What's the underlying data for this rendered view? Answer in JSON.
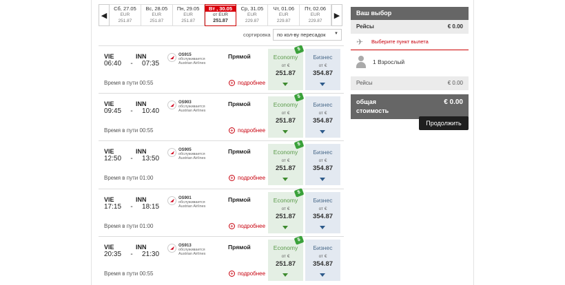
{
  "dates": [
    {
      "name": "Сб, 27.05",
      "currency": "EUR",
      "price": "251.87",
      "active": false
    },
    {
      "name": "Вс, 28.05",
      "currency": "EUR",
      "price": "251.87",
      "active": false
    },
    {
      "name": "Пн, 29.05",
      "currency": "EUR",
      "price": "251.87",
      "active": false
    },
    {
      "name": "Вт , 30.05",
      "currency": "от EUR",
      "price": "251.87",
      "active": true
    },
    {
      "name": "Ср, 31.05",
      "currency": "EUR",
      "price": "229.87",
      "active": false
    },
    {
      "name": "Чт, 01.06",
      "currency": "EUR",
      "price": "229.87",
      "active": false
    },
    {
      "name": "Пт, 02.06",
      "currency": "EUR",
      "price": "229.87",
      "active": false
    }
  ],
  "sort": {
    "label": "сортировка",
    "selected": "по кол-ву пересадок"
  },
  "labels": {
    "duration_prefix": "Время в пути",
    "operated_by": "обслуживается",
    "details": "подробнее",
    "economy": "Economy",
    "business": "Бизнес",
    "from": "от €"
  },
  "flights": [
    {
      "from": "VIE",
      "to": "INN",
      "dep": "06:40",
      "arr": "07:35",
      "flight_no": "OS915",
      "airline": "Austrian Airlines",
      "type": "Прямой",
      "duration": "Время в пути 00:55",
      "economy_price": "251.87",
      "business_price": "354.87"
    },
    {
      "from": "VIE",
      "to": "INN",
      "dep": "09:45",
      "arr": "10:40",
      "flight_no": "OS903",
      "airline": "Austrian Airlines",
      "type": "Прямой",
      "duration": "Время в пути 00:55",
      "economy_price": "251.87",
      "business_price": "354.87"
    },
    {
      "from": "VIE",
      "to": "INN",
      "dep": "12:50",
      "arr": "13:50",
      "flight_no": "OS905",
      "airline": "Austrian Airlines",
      "type": "Прямой",
      "duration": "Время в пути 01:00",
      "economy_price": "251.87",
      "business_price": "354.87"
    },
    {
      "from": "VIE",
      "to": "INN",
      "dep": "17:15",
      "arr": "18:15",
      "flight_no": "OS901",
      "airline": "Austrian Airlines",
      "type": "Прямой",
      "duration": "Время в пути 01:00",
      "economy_price": "251.87",
      "business_price": "354.87"
    },
    {
      "from": "VIE",
      "to": "INN",
      "dep": "20:35",
      "arr": "21:30",
      "flight_no": "OS913",
      "airline": "Austrian Airlines",
      "type": "Прямой",
      "duration": "Время в пути 00:55",
      "economy_price": "251.87",
      "business_price": "354.87"
    }
  ],
  "summary": {
    "title": "Ваш выбор",
    "flights_label": "Рейсы",
    "flights_value": "€ 0.00",
    "select_origin": "Выберите пункт вылета",
    "passengers": "1 Взрослый",
    "flights_label2": "Рейсы",
    "flights_value2": "€ 0.00",
    "total_label_1": "общая",
    "total_label_2": "стоимость",
    "total_value": "€ 0.00",
    "continue": "Продолжить"
  },
  "colors": {
    "accent": "#d9000d",
    "economy": "#3d8a2e",
    "business": "#2e5a8a",
    "panel": "#666666"
  }
}
